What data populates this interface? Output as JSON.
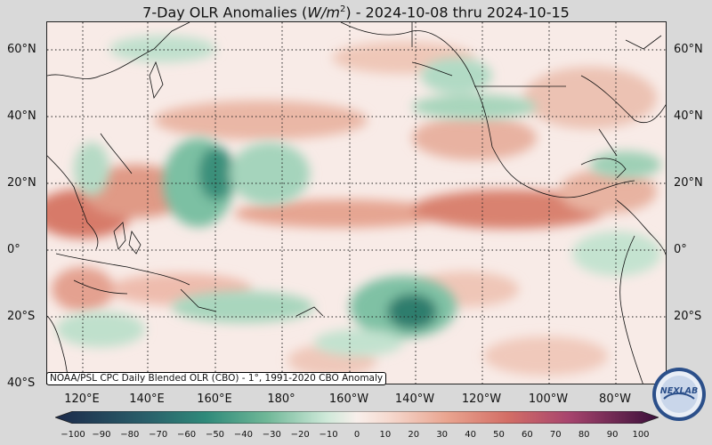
{
  "title_prefix": "7-Day OLR Anomalies (",
  "title_unit": "W/m",
  "title_sup": "2",
  "title_suffix": ") - 2024-10-08 thru 2024-10-15",
  "lat_labels": [
    "60°N",
    "40°N",
    "20°N",
    "0°",
    "20°S",
    "40°S"
  ],
  "lon_labels": [
    "120°E",
    "140°E",
    "160°E",
    "180°",
    "160°W",
    "140°W",
    "120°W",
    "100°W",
    "80°W"
  ],
  "credit": "NOAA/PSL CPC Daily Blended OLR (CBO) - 1°, 1991-2020 CBO Anomaly",
  "colorbar": {
    "ticks": [
      "−100",
      "−90",
      "−80",
      "−70",
      "−60",
      "−50",
      "−40",
      "−30",
      "−20",
      "−10",
      "0",
      "10",
      "20",
      "30",
      "40",
      "50",
      "60",
      "70",
      "80",
      "90",
      "100"
    ],
    "min": -100,
    "max": 100,
    "colors": {
      "neg_extreme": "#1c2a4a",
      "neg_strong": "#2a6b6c",
      "neg_mid": "#3e9b85",
      "neg_weak": "#a9d8bf",
      "neutral": "#f8efeb",
      "pos_weak": "#efc0b0",
      "pos_mid": "#d97b6a",
      "pos_strong": "#b2436a",
      "pos_extreme": "#3a0f3a"
    }
  },
  "logo_text": "NEXLAB",
  "map_colors": {
    "background": "#f7e6e2",
    "positive": "#d9806c",
    "negative": "#4aa287",
    "coast": "#111111"
  }
}
